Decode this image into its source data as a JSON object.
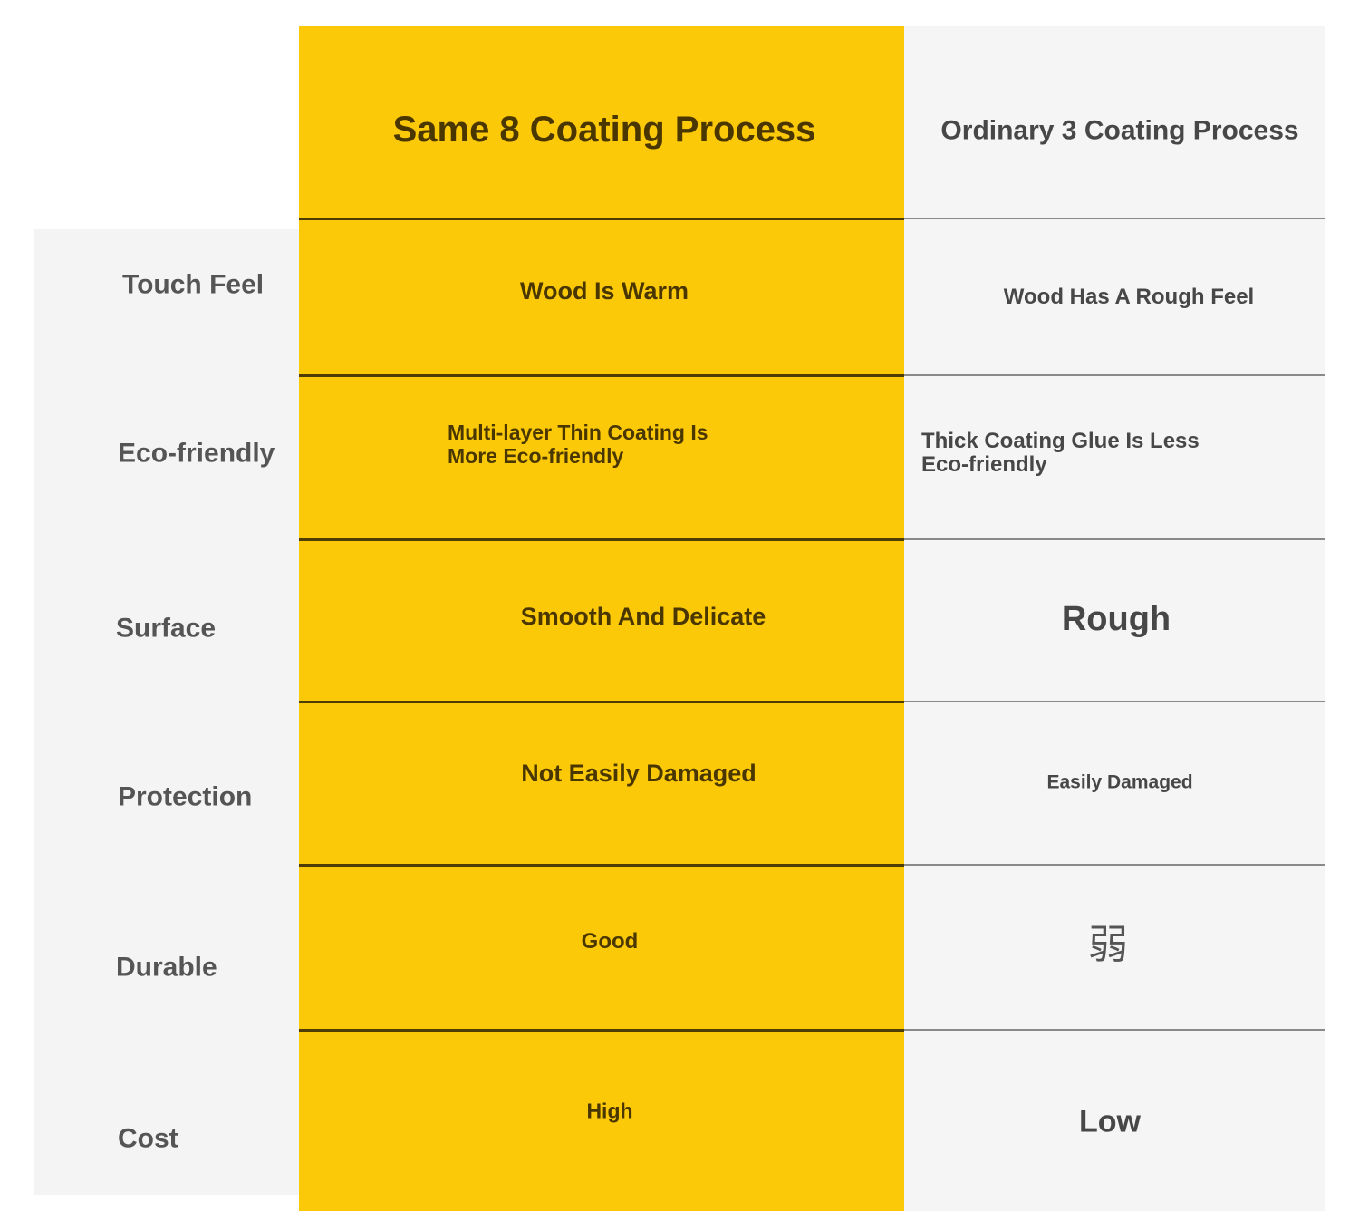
{
  "colors": {
    "highlight": "#fcc909",
    "highlight_text": "#4a3700",
    "neutral_bg": "#f5f5f6",
    "label_text": "#555555"
  },
  "columns": {
    "featured": "Same 8 Coating Process",
    "ordinary": "Ordinary 3 Coating Process"
  },
  "rows": [
    {
      "label": "Touch Feel",
      "featured": "Wood Is Warm",
      "ordinary": "Wood Has A Rough Feel"
    },
    {
      "label": "Eco-friendly",
      "featured_lines": [
        "Multi-layer Thin Coating Is",
        "More Eco-friendly"
      ],
      "ordinary_lines": [
        "Thick Coating Glue Is Less",
        "Eco-friendly"
      ]
    },
    {
      "label": "Surface",
      "featured": "Smooth And Delicate",
      "ordinary": "Rough"
    },
    {
      "label": "Protection",
      "featured": "Not Easily Damaged",
      "ordinary": "Easily Damaged"
    },
    {
      "label": "Durable",
      "featured": "Good",
      "ordinary": "弱"
    },
    {
      "label": "Cost",
      "featured": "High",
      "ordinary": "Low"
    }
  ]
}
